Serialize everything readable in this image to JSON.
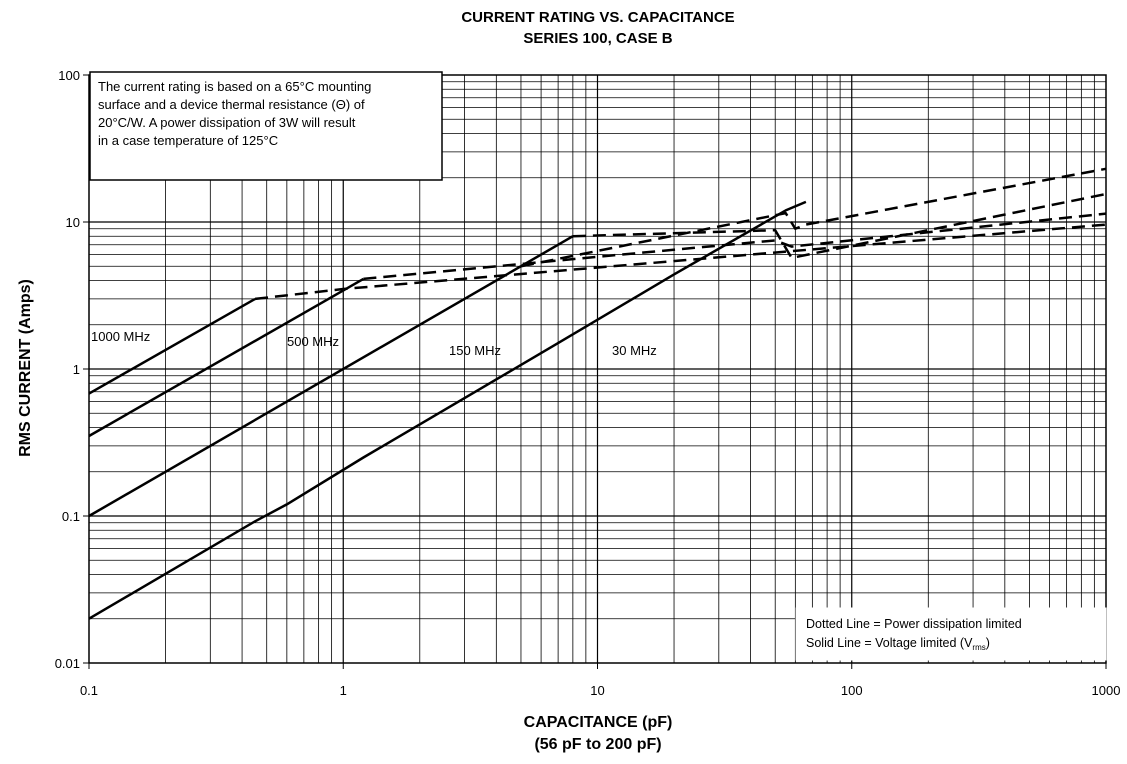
{
  "chart_data": {
    "type": "line",
    "title": "CURRENT RATING VS. CAPACITANCE",
    "subtitle": "SERIES 100, CASE B",
    "xlabel": "CAPACITANCE (pF)",
    "xlabel_sub": "(56 pF to 200 pF)",
    "ylabel": "RMS CURRENT (Amps)",
    "x_scale": "log",
    "y_scale": "log",
    "xlim": [
      0.1,
      1000
    ],
    "ylim": [
      0.01,
      100
    ],
    "x_ticks": [
      "0.1",
      "1",
      "10",
      "100",
      "1000"
    ],
    "y_ticks": [
      "0.01",
      "0.1",
      "1",
      "10",
      "100"
    ],
    "grid": true,
    "note": {
      "lines": [
        "The current rating is based on a 65°C mounting",
        "surface and a device thermal resistance (Θ) of",
        "20°C/W. A power dissipation of 3W will result",
        "in a case temperature of 125°C"
      ]
    },
    "legend": {
      "placement": "bottom-right",
      "dotted": "Dotted Line = Power dissipation limited",
      "solid_prefix": "Solid Line = Voltage limited (V",
      "solid_sub": "rms",
      "solid_suffix": ")"
    },
    "series": [
      {
        "name": "1000 MHz",
        "voltage_limited": [
          [
            0.1,
            0.68
          ],
          [
            0.45,
            3.0
          ]
        ],
        "power_limited": [
          [
            0.45,
            3.0
          ],
          [
            1.0,
            3.5
          ],
          [
            1000,
            9.6
          ]
        ]
      },
      {
        "name": "500 MHz",
        "voltage_limited": [
          [
            0.1,
            0.35
          ],
          [
            1.2,
            4.1
          ]
        ],
        "power_limited": [
          [
            1.2,
            4.1
          ],
          [
            10,
            5.8
          ],
          [
            50,
            7.5
          ],
          [
            58,
            6.8
          ],
          [
            1000,
            11.4
          ]
        ]
      },
      {
        "name": "150 MHz",
        "voltage_limited": [
          [
            0.1,
            0.1
          ],
          [
            8.0,
            8.0
          ]
        ],
        "power_limited": [
          [
            8.0,
            8.0
          ],
          [
            50,
            8.8
          ],
          [
            58,
            5.7
          ],
          [
            1000,
            15.5
          ]
        ]
      },
      {
        "name": "30 MHz",
        "voltage_limited": [
          [
            0.1,
            0.02
          ],
          [
            0.45,
            0.092
          ],
          [
            0.6,
            0.12
          ],
          [
            1.2,
            0.25
          ],
          [
            7.0,
            1.5
          ],
          [
            20,
            4.4
          ],
          [
            55,
            12.0
          ],
          [
            66,
            13.7
          ]
        ],
        "power_limited": [
          [
            5.0,
            5.0
          ],
          [
            55,
            11.5
          ],
          [
            60,
            9.0
          ],
          [
            66,
            9.6
          ],
          [
            1000,
            23
          ]
        ]
      }
    ],
    "series_labels": [
      "1000 MHz",
      "500 MHz",
      "150 MHz",
      "30 MHz"
    ]
  }
}
